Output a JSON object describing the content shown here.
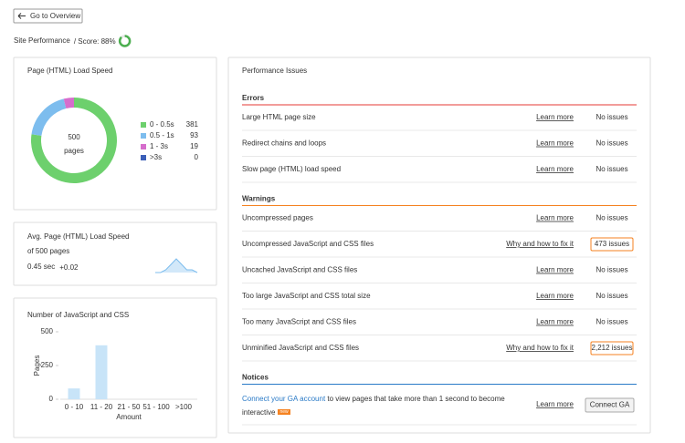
{
  "header": {
    "back_button": "Go to Overview",
    "title": "Site Performance",
    "score_label": "/ Score: 88%",
    "score": 88,
    "score_color": "#4caf50"
  },
  "load_speed": {
    "title": "Page (HTML) Load Speed",
    "center_value": "500",
    "center_unit": "pages",
    "chart_data": {
      "type": "donut",
      "categories": [
        "0 - 0.5s",
        "0.5 - 1s",
        "1 - 3s",
        ">3s"
      ],
      "values": [
        381,
        93,
        19,
        0
      ],
      "colors": [
        "#6dd06d",
        "#7dbdee",
        "#d66dcc",
        "#3c5fb8"
      ]
    }
  },
  "avg_speed": {
    "title": "Avg. Page (HTML) Load Speed",
    "subtitle": "of 500 pages",
    "value": "0.45 sec",
    "delta": "+0.02",
    "chart_data": {
      "type": "area",
      "values": [
        0,
        0,
        1,
        3,
        5,
        3,
        1,
        1,
        0
      ],
      "ylim": [
        0,
        6
      ],
      "color": "#7dbdee"
    }
  },
  "js_css": {
    "title": "Number of JavaScript and CSS",
    "chart_data": {
      "type": "bar",
      "categories": [
        "0 - 10",
        "11 - 20",
        "21 - 50",
        "51 - 100",
        ">100"
      ],
      "values": [
        80,
        400,
        0,
        0,
        0
      ],
      "ylim": [
        0,
        500
      ],
      "yticks": [
        0,
        250,
        500
      ],
      "y_label": "Pages",
      "x_label": "Amount",
      "color": "#c8e4f8",
      "grid": false
    }
  },
  "issues": {
    "title": "Performance Issues",
    "sections": [
      {
        "title": "Errors",
        "color": "#e53935",
        "items": [
          {
            "name": "Large HTML page size",
            "link": "Learn more",
            "status": "No issues",
            "status_color": "#3aa63a",
            "boxed": false
          },
          {
            "name": "Redirect chains and loops",
            "link": "Learn more",
            "status": "No issues",
            "status_color": "#3aa63a",
            "boxed": false
          },
          {
            "name": "Slow page (HTML) load speed",
            "link": "Learn more",
            "status": "No issues",
            "status_color": "#3aa63a",
            "boxed": false
          }
        ]
      },
      {
        "title": "Warnings",
        "color": "#f58220",
        "items": [
          {
            "name": "Uncompressed pages",
            "link": "Learn more",
            "status": "No issues",
            "status_color": "#3aa63a",
            "boxed": false
          },
          {
            "name": "Uncompressed JavaScript and CSS files",
            "link": "Why and how to fix it",
            "status": "473 issues",
            "status_color": "#f58220",
            "boxed": true
          },
          {
            "name": "Uncached JavaScript and CSS files",
            "link": "Learn more",
            "status": "No issues",
            "status_color": "#3aa63a",
            "boxed": false
          },
          {
            "name": "Too large JavaScript and CSS total size",
            "link": "Learn more",
            "status": "No issues",
            "status_color": "#3aa63a",
            "boxed": false
          },
          {
            "name": "Too many JavaScript and CSS files",
            "link": "Learn more",
            "status": "No issues",
            "status_color": "#3aa63a",
            "boxed": false
          },
          {
            "name": "Unminified JavaScript and CSS files",
            "link": "Why and how to fix it",
            "status": "2,212 issues",
            "status_color": "#f58220",
            "boxed": true
          }
        ]
      },
      {
        "title": "Notices",
        "color": "#2a7ac7",
        "items": []
      }
    ],
    "notice": {
      "link_text": "Connect your GA account",
      "text": "to view pages that take more than 1 second to become interactive",
      "badge": "new",
      "link": "Learn more",
      "button": "Connect GA"
    }
  }
}
